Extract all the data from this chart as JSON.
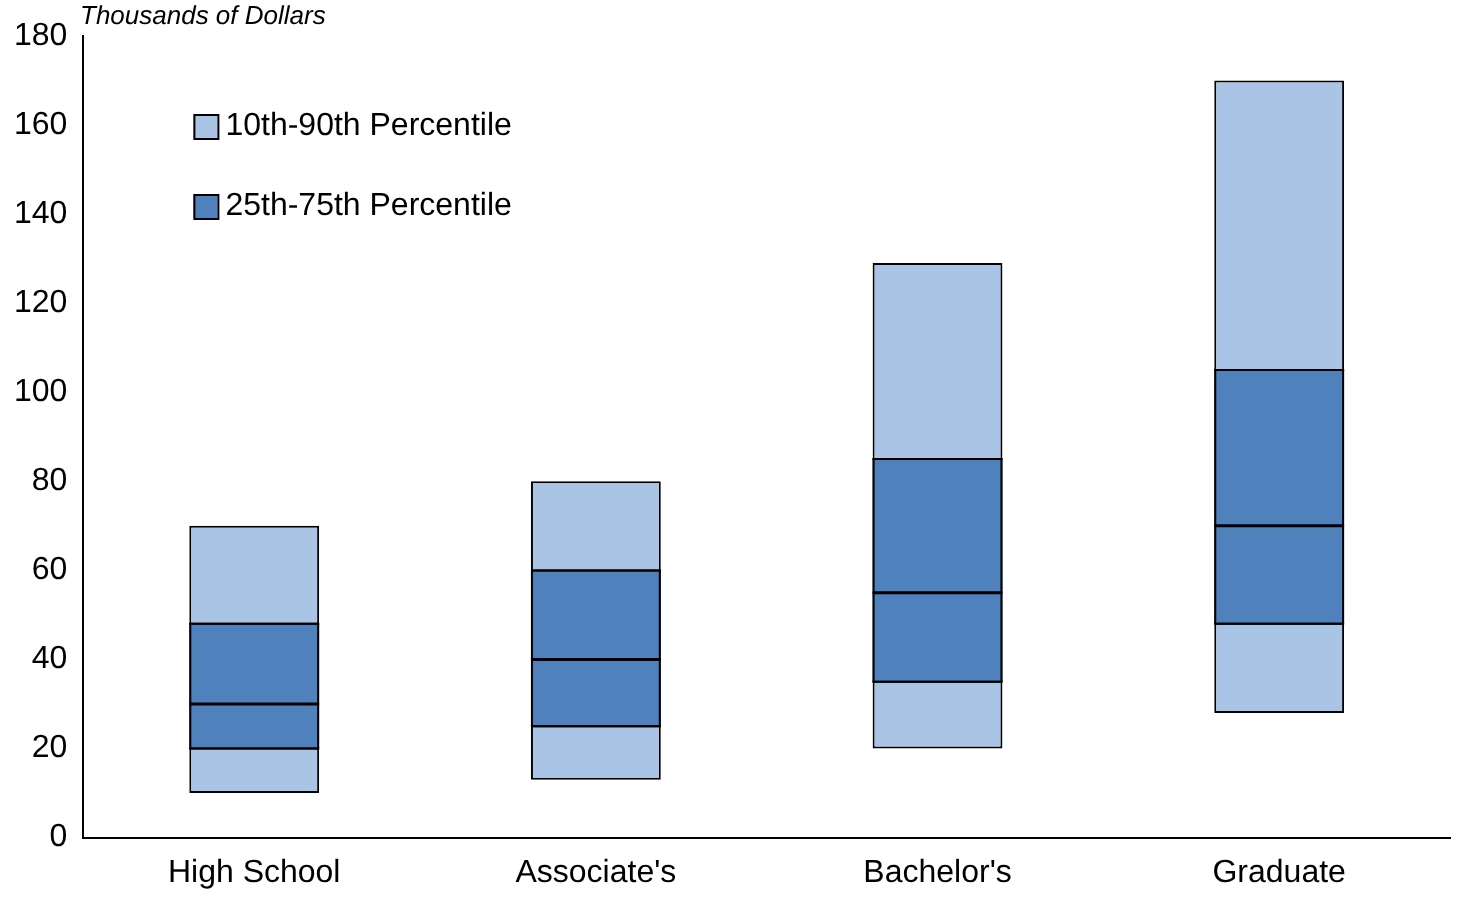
{
  "chart_data": {
    "type": "bar",
    "ylabel": "Thousands of Dollars",
    "categories": [
      "High School",
      "Associate's",
      "Bachelor's",
      "Graduate"
    ],
    "series": [
      {
        "name": "10th-90th Percentile",
        "type": "bar",
        "color": "#a9c4e4",
        "base": [
          10,
          13,
          20,
          28
        ],
        "values": [
          60,
          67,
          109,
          142
        ]
      },
      {
        "name": "25th-75th Percentile",
        "type": "box",
        "color": "#4f81bd",
        "boxes": [
          {
            "low": 20,
            "q1": 20,
            "median": 30,
            "q3": 48,
            "high": 48
          },
          {
            "low": 25,
            "q1": 25,
            "median": 40,
            "q3": 60,
            "high": 60
          },
          {
            "low": 35,
            "q1": 35,
            "median": 55,
            "q3": 85,
            "high": 85
          },
          {
            "low": 48,
            "q1": 48,
            "median": 70,
            "q3": 105,
            "high": 105
          }
        ]
      }
    ],
    "ylim": [
      0,
      180
    ],
    "yticks": [
      0,
      20,
      40,
      60,
      80,
      100,
      120,
      140,
      160,
      180
    ],
    "grid": false,
    "legend": "top left"
  }
}
